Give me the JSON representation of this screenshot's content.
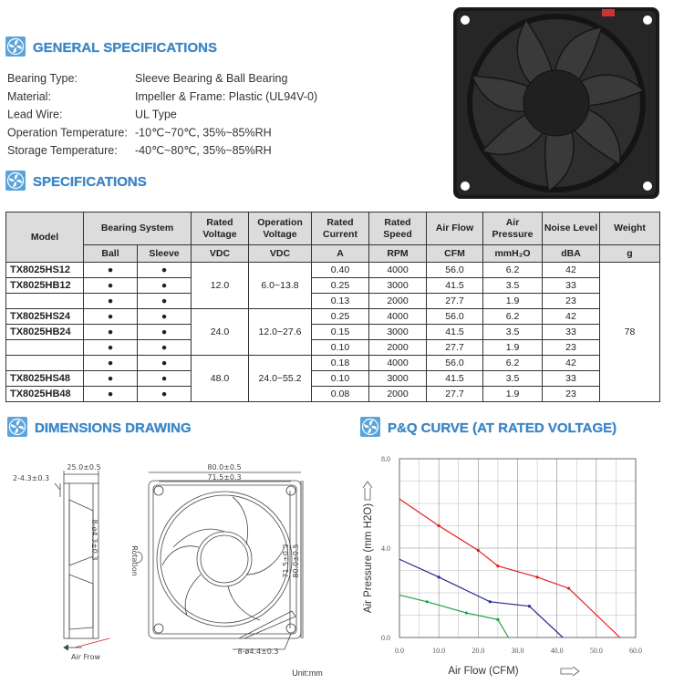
{
  "general": {
    "title": "GENERAL SPECIFICATIONS",
    "rows": [
      {
        "label": "Bearing Type:",
        "value": "Sleeve Bearing & Ball  Bearing"
      },
      {
        "label": "Material:",
        "value": "Impeller & Frame: Plastic (UL94V-0)"
      },
      {
        "label": "Lead Wire:",
        "value": "UL Type"
      },
      {
        "label": "Operation Temperature:",
        "value": "-10℃~70℃, 35%~85%RH"
      },
      {
        "label": "Storage Temperature:",
        "value": "-40℃~80℃, 35%~85%RH"
      }
    ]
  },
  "specs": {
    "title": "SPECIFICATIONS",
    "header": {
      "model": "Model",
      "bearing": "Bearing System",
      "ball": "Ball",
      "sleeve": "Sleeve",
      "rated_voltage": "Rated\nVoltage",
      "operating_voltage": "Operation\nVoltage",
      "current": "Rated\nCurrent",
      "speed": "Rated\nSpeed",
      "flow": "Air Flow",
      "pressure": "Air\nPressure",
      "noise": "Noise Level",
      "weight": "Weight"
    },
    "units": {
      "rated_voltage": "VDC",
      "operating_voltage": "VDC",
      "current": "A",
      "speed": "RPM",
      "flow": "CFM",
      "pressure": "mmH₂O",
      "noise": "dBA",
      "weight": "g"
    },
    "weight": "78",
    "groups": [
      {
        "rated_voltage": "12.0",
        "operating_voltage": "6.0~13.8",
        "rows": [
          {
            "model": "TX8025HS12",
            "ball": "●",
            "sleeve": "●",
            "current": "0.40",
            "speed": "4000",
            "flow": "56.0",
            "pressure": "6.2",
            "noise": "42"
          },
          {
            "model": "TX8025HB12",
            "ball": "●",
            "sleeve": "●",
            "current": "0.25",
            "speed": "3000",
            "flow": "41.5",
            "pressure": "3.5",
            "noise": "33"
          },
          {
            "ball": "●",
            "sleeve": "●",
            "current": "0.13",
            "speed": "2000",
            "flow": "27.7",
            "pressure": "1.9",
            "noise": "23"
          }
        ]
      },
      {
        "rated_voltage": "24.0",
        "operating_voltage": "12.0~27.6",
        "rows": [
          {
            "model": "TX8025HS24",
            "ball": "●",
            "sleeve": "●",
            "current": "0.25",
            "speed": "4000",
            "flow": "56.0",
            "pressure": "6.2",
            "noise": "42"
          },
          {
            "model": "TX8025HB24",
            "ball": "●",
            "sleeve": "●",
            "current": "0.15",
            "speed": "3000",
            "flow": "41.5",
            "pressure": "3.5",
            "noise": "33"
          },
          {
            "ball": "●",
            "sleeve": "●",
            "current": "0.10",
            "speed": "2000",
            "flow": "27.7",
            "pressure": "1.9",
            "noise": "23"
          }
        ]
      },
      {
        "rated_voltage": "48.0",
        "operating_voltage": "24.0~55.2",
        "rows": [
          {
            "ball": "●",
            "sleeve": "●",
            "current": "0.18",
            "speed": "4000",
            "flow": "56.0",
            "pressure": "6.2",
            "noise": "42"
          },
          {
            "model": "TX8025HS48",
            "ball": "●",
            "sleeve": "●",
            "current": "0.10",
            "speed": "3000",
            "flow": "41.5",
            "pressure": "3.5",
            "noise": "33"
          },
          {
            "model": "TX8025HB48",
            "ball": "●",
            "sleeve": "●",
            "current": "0.08",
            "speed": "2000",
            "flow": "27.7",
            "pressure": "1.9",
            "noise": "23"
          }
        ]
      }
    ]
  },
  "dimensions": {
    "title": "DIMENSIONS DRAWING",
    "depth": "25.0±0.5",
    "side_holes": "2-4.3±0.3",
    "side_mount": "8-ø4.3±0.3",
    "width": "80.0±0.5",
    "hole_pitch": "71.5±0.3",
    "hole_pitch_v": "71.5±0.3",
    "height": "80.0±0.5",
    "front_holes": "8-ø4.4±0.3",
    "rotation": "Rotation",
    "airflow": "Air Frow",
    "unit": "Unit:mm"
  },
  "chart_data": {
    "type": "line",
    "title": "P&Q CURVE (AT RATED VOLTAGE)",
    "x_label": "Air Flow (CFM)",
    "y_label": "Air Pressure (mm H2O)",
    "xlim": [
      0,
      60
    ],
    "ylim": [
      0,
      8
    ],
    "xticks": [
      {
        "value": 0,
        "label": "0.0"
      },
      {
        "value": 10,
        "label": "10.0"
      },
      {
        "value": 20,
        "label": "20.0"
      },
      {
        "value": 30,
        "label": "30.0"
      },
      {
        "value": 40,
        "label": "40.0"
      },
      {
        "value": 50,
        "label": "50.0"
      },
      {
        "value": 60,
        "label": "60.0"
      }
    ],
    "yticks": [
      {
        "value": 0,
        "label": "0.0"
      },
      {
        "value": 4,
        "label": "4.0"
      },
      {
        "value": 8,
        "label": "8.0"
      }
    ],
    "grid": true,
    "series": [
      {
        "color": "#e0201c",
        "x": [
          0,
          10,
          20,
          25,
          35,
          43,
          56
        ],
        "values": [
          6.2,
          5.0,
          3.9,
          3.2,
          2.7,
          2.2,
          0
        ]
      },
      {
        "color": "#26288f",
        "x": [
          0,
          10,
          23,
          33,
          41.5
        ],
        "values": [
          3.5,
          2.7,
          1.6,
          1.4,
          0
        ]
      },
      {
        "color": "#1fa246",
        "x": [
          0,
          7,
          17,
          25,
          27.7
        ],
        "values": [
          1.9,
          1.6,
          1.1,
          0.8,
          0
        ]
      }
    ]
  }
}
